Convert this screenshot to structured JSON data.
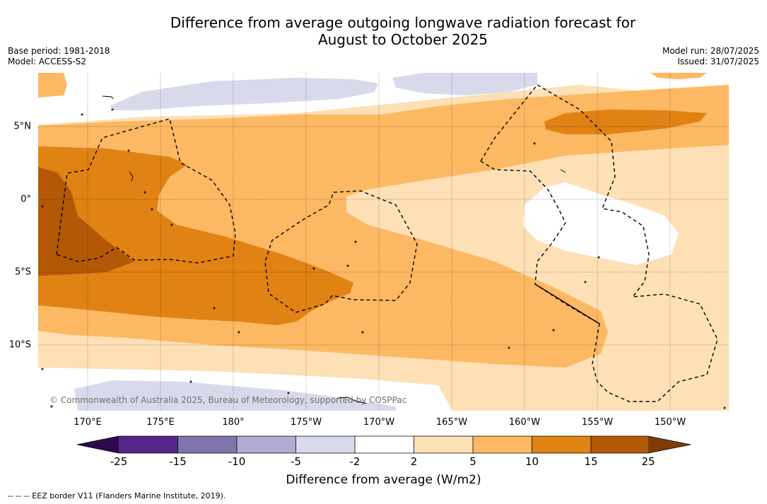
{
  "title_line1": "Difference from average outgoing longwave radiation forecast for",
  "title_line2": "August to October 2025",
  "base_period": "Base period: 1981-2018",
  "model": "Model: ACCESS-S2",
  "model_run": "Model run: 28/07/2025",
  "issued": "Issued: 31/07/2025",
  "credit": "© Commonwealth of Australia 2025, Bureau of Meteorology, supported by COSPPac",
  "footnote": "--  --  -- EEZ border V11 (Flanders Marine Institute, 2019).",
  "lat_ticks": [
    "5°N",
    "0°",
    "5°S",
    "10°S"
  ],
  "lon_ticks": [
    "170°E",
    "175°E",
    "180°",
    "175°W",
    "170°W",
    "165°W",
    "160°W",
    "155°W",
    "150°W"
  ],
  "colorbar": {
    "label": "Difference from average (W/m2)",
    "ticks": [
      "-25",
      "-15",
      "-10",
      "-5",
      "-2",
      "2",
      "5",
      "10",
      "15",
      "25"
    ],
    "colors": {
      "under": "#2d0a4e",
      "b1": "#542788",
      "b2": "#8073ac",
      "b3": "#b2abd2",
      "b4": "#d8daeb",
      "b5": "#ffffff",
      "b6": "#fee0b6",
      "b7": "#fdb863",
      "b8": "#e08214",
      "b9": "#b35806",
      "over": "#7f3b08"
    }
  }
}
